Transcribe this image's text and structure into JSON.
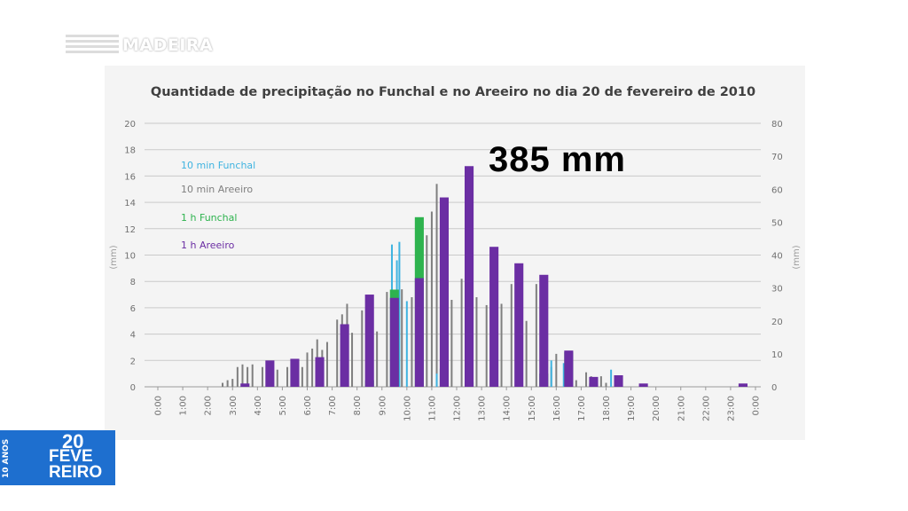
{
  "channel": {
    "logo_text": "MADEIRA"
  },
  "badge": {
    "anos": "10 ANOS",
    "line1": "20",
    "line2": "FEVE",
    "line3": "REIRO"
  },
  "overlay": {
    "total": "385 mm"
  },
  "colors": {
    "funchal10": "#3fb3e0",
    "areeiro10": "#7f7f7f",
    "funchal1h": "#2eb34e",
    "areeiro1h": "#6b2ea3",
    "badge": "#1e6fcf"
  },
  "chart_data": {
    "type": "bar",
    "title": "Quantidade de precipitação no Funchal e no Areeiro no dia 20 de fevereiro de 2010",
    "ylabel": "(mm)",
    "y2label": "(mm)",
    "ylim": [
      0,
      20
    ],
    "y2lim": [
      0,
      80
    ],
    "yticks": [
      "0",
      "2",
      "4",
      "6",
      "8",
      "10",
      "12",
      "14",
      "16",
      "18",
      "20"
    ],
    "y2ticks": [
      "0",
      "10",
      "20",
      "30",
      "40",
      "50",
      "60",
      "70",
      "80"
    ],
    "xticks": [
      "0:00",
      "1:00",
      "2:00",
      "3:00",
      "4:00",
      "5:00",
      "6:00",
      "7:00",
      "8:00",
      "9:00",
      "10:00",
      "11:00",
      "12:00",
      "13:00",
      "14:00",
      "15:00",
      "16:00",
      "17:00",
      "18:00",
      "19:00",
      "20:00",
      "21:00",
      "22:00",
      "23:00",
      "0:00"
    ],
    "legend": [
      "10 min Funchal",
      "10 min Areeiro",
      "1 h Funchal",
      "1 h Areeiro"
    ],
    "legend_position": "top-left",
    "series": [
      {
        "name": "10 min Funchal",
        "axis": "left",
        "interval_hours": 0.1667,
        "points": [
          [
            9.4,
            10.8
          ],
          [
            9.6,
            9.6
          ],
          [
            9.7,
            11.0
          ],
          [
            10.0,
            6.5
          ],
          [
            11.2,
            1.0
          ],
          [
            15.6,
            3.2
          ],
          [
            15.8,
            2.0
          ],
          [
            16.3,
            1.8
          ],
          [
            18.2,
            1.3
          ]
        ]
      },
      {
        "name": "10 min Areeiro",
        "axis": "left",
        "interval_hours": 0.1667,
        "points": [
          [
            2.6,
            0.3
          ],
          [
            2.8,
            0.5
          ],
          [
            3.0,
            0.6
          ],
          [
            3.2,
            1.5
          ],
          [
            3.4,
            1.7
          ],
          [
            3.6,
            1.5
          ],
          [
            3.8,
            1.7
          ],
          [
            4.2,
            1.5
          ],
          [
            4.4,
            1.4
          ],
          [
            4.6,
            1.2
          ],
          [
            4.8,
            1.3
          ],
          [
            5.2,
            1.5
          ],
          [
            5.4,
            1.2
          ],
          [
            5.6,
            1.0
          ],
          [
            5.8,
            1.5
          ],
          [
            6.0,
            2.6
          ],
          [
            6.2,
            2.9
          ],
          [
            6.4,
            3.6
          ],
          [
            6.6,
            2.8
          ],
          [
            6.8,
            3.4
          ],
          [
            7.2,
            5.1
          ],
          [
            7.4,
            5.5
          ],
          [
            7.6,
            6.3
          ],
          [
            7.8,
            4.1
          ],
          [
            8.2,
            5.8
          ],
          [
            8.4,
            6.2
          ],
          [
            8.6,
            4.5
          ],
          [
            8.8,
            4.2
          ],
          [
            9.2,
            7.2
          ],
          [
            9.4,
            6.5
          ],
          [
            9.6,
            6.7
          ],
          [
            9.8,
            7.4
          ],
          [
            10.2,
            6.8
          ],
          [
            10.4,
            5.8
          ],
          [
            10.6,
            9.4
          ],
          [
            10.8,
            11.5
          ],
          [
            11.0,
            13.3
          ],
          [
            11.2,
            15.4
          ],
          [
            11.4,
            13.8
          ],
          [
            11.6,
            14.0
          ],
          [
            11.8,
            6.6
          ],
          [
            12.2,
            8.2
          ],
          [
            12.4,
            7.0
          ],
          [
            12.6,
            7.0
          ],
          [
            12.8,
            6.8
          ],
          [
            13.2,
            6.2
          ],
          [
            13.4,
            6.4
          ],
          [
            13.6,
            6.4
          ],
          [
            13.8,
            6.3
          ],
          [
            14.2,
            7.8
          ],
          [
            14.4,
            8.3
          ],
          [
            14.6,
            4.7
          ],
          [
            14.8,
            5.0
          ],
          [
            15.2,
            7.8
          ],
          [
            15.4,
            6.6
          ],
          [
            15.6,
            2.0
          ],
          [
            15.8,
            1.5
          ],
          [
            16.0,
            2.5
          ],
          [
            16.6,
            0.3
          ],
          [
            16.8,
            0.5
          ],
          [
            17.2,
            1.1
          ],
          [
            17.4,
            0.8
          ],
          [
            17.6,
            0.6
          ],
          [
            17.8,
            0.8
          ],
          [
            18.0,
            0.3
          ]
        ]
      },
      {
        "name": "1 h Funchal",
        "axis": "right",
        "interval_hours": 1,
        "points": [
          [
            8.5,
            2
          ],
          [
            9.5,
            29.5
          ],
          [
            10.5,
            51.5
          ],
          [
            11.5,
            5.5
          ],
          [
            12.5,
            1.5
          ],
          [
            15.5,
            4
          ],
          [
            16.5,
            10.5
          ],
          [
            17.5,
            1
          ]
        ]
      },
      {
        "name": "1 h Areeiro",
        "axis": "right",
        "interval_hours": 1,
        "points": [
          [
            3.5,
            1.0
          ],
          [
            4.5,
            8.0
          ],
          [
            5.5,
            8.5
          ],
          [
            6.5,
            9.0
          ],
          [
            7.5,
            19.0
          ],
          [
            8.5,
            28.0
          ],
          [
            9.5,
            27.0
          ],
          [
            10.5,
            33.0
          ],
          [
            11.5,
            57.5
          ],
          [
            12.5,
            67.0
          ],
          [
            13.5,
            42.5
          ],
          [
            14.5,
            37.5
          ],
          [
            15.5,
            34.0
          ],
          [
            16.5,
            11.0
          ],
          [
            17.5,
            3.0
          ],
          [
            18.5,
            3.5
          ],
          [
            19.5,
            1.0
          ],
          [
            23.5,
            1.0
          ]
        ]
      }
    ]
  }
}
